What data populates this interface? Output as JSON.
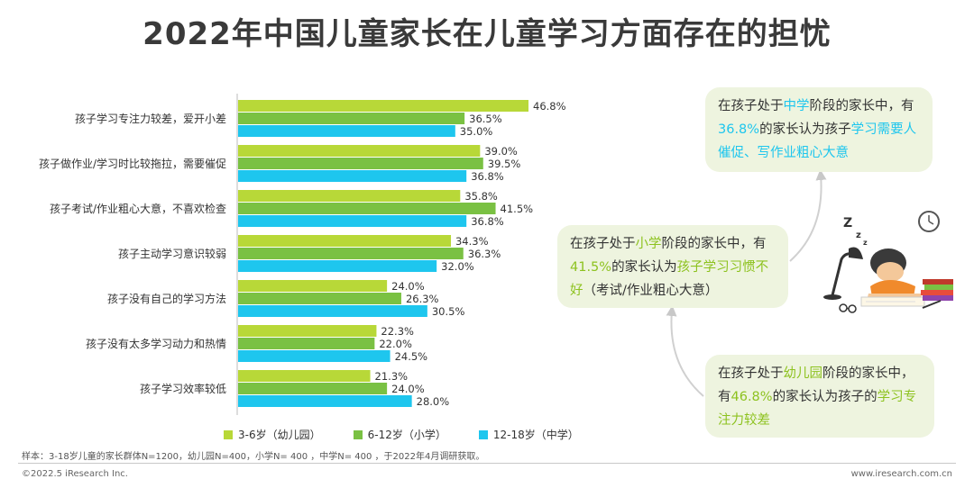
{
  "title": "2022年中国儿童家长在儿童学习方面存在的担忧",
  "chart_data": {
    "type": "bar",
    "orientation": "horizontal",
    "categories": [
      "孩子学习专注力较差，爱开小差",
      "孩子做作业/学习时比较拖拉，需要催促",
      "孩子考试/作业粗心大意，不喜欢检查",
      "孩子主动学习意识较弱",
      "孩子没有自己的学习方法",
      "孩子没有太多学习动力和热情",
      "孩子学习效率较低"
    ],
    "series": [
      {
        "name": "3-6岁（幼儿园）",
        "color": "#b8d838",
        "values": [
          46.8,
          39.0,
          35.8,
          34.3,
          24.0,
          22.3,
          21.3
        ]
      },
      {
        "name": "6-12岁（小学）",
        "color": "#7ac143",
        "values": [
          36.5,
          39.5,
          41.5,
          36.3,
          26.3,
          22.0,
          24.0
        ]
      },
      {
        "name": "12-18岁（中学）",
        "color": "#1ec6ee",
        "values": [
          35.0,
          36.8,
          36.8,
          32.0,
          30.5,
          24.5,
          28.0
        ]
      }
    ],
    "value_suffix": "%",
    "xlim": [
      0,
      50
    ],
    "legend_position": "bottom",
    "grid": false
  },
  "legend": [
    {
      "label": "3-6岁（幼儿园）",
      "color": "#b8d838"
    },
    {
      "label": "6-12岁（小学）",
      "color": "#7ac143"
    },
    {
      "label": "12-18岁（中学）",
      "color": "#1ec6ee"
    }
  ],
  "callouts": {
    "top": {
      "p1": "在孩子处于",
      "h1": "中学",
      "p2": "阶段的家长中，有",
      "h2": "36.8%",
      "p3": "的家长认为孩子",
      "h3": "学习需要人催促、写作业粗心大意"
    },
    "mid": {
      "p1": "在孩子处于",
      "h1": "小学",
      "p2": "阶段的家长中，有",
      "h2": "41.5%",
      "p3": "的家长认为",
      "h3": "孩子学习习惯不好",
      "p4": "（考试/作业粗心大意）"
    },
    "bot": {
      "p1": "在孩子处于",
      "h1": "幼儿园",
      "p2": "阶段的家长中，有",
      "h2": "46.8%",
      "p3": "的家长认为孩子的",
      "h3": "学习专注力较差"
    }
  },
  "note": "样本：3-18岁儿童的家长群体N=1200，幼儿园N=400，小学N= 400 ，中学N= 400 ，于2022年4月调研获取。",
  "footer": {
    "left": "©2022.5 iResearch Inc.",
    "right": "www.iresearch.com.cn"
  }
}
